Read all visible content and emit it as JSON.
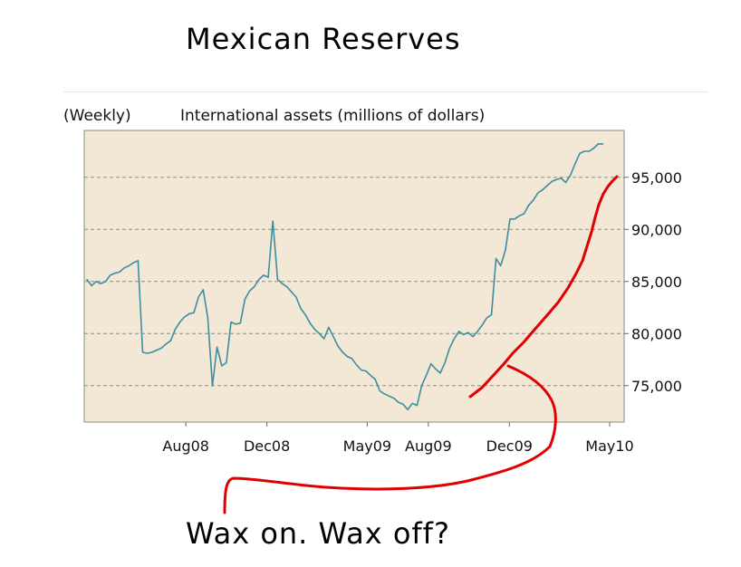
{
  "slide": {
    "title": "Mexican Reserves",
    "caption": "Wax on. Wax off?"
  },
  "chart_data": {
    "type": "line",
    "frequency_label": "(Weekly)",
    "ylabel": "International assets (millions of dollars)",
    "xlabel": "",
    "grid": "horizontal dashed",
    "background": "#f3e7d6",
    "line_color": "#3b8fa0",
    "annotation_color": "#e00000",
    "ylim": [
      71500,
      99500
    ],
    "xlim": [
      "2008-03",
      "2010-05"
    ],
    "y_ticks": [
      "75,000",
      "80,000",
      "85,000",
      "90,000",
      "95,000"
    ],
    "x_ticks": [
      "Aug08",
      "Dec08",
      "May09",
      "Aug09",
      "Dec09",
      "May10"
    ],
    "series": [
      {
        "points": [
          [
            "2008-03-05",
            85200
          ],
          [
            "2008-03-12",
            84600
          ],
          [
            "2008-03-19",
            85000
          ],
          [
            "2008-03-26",
            84800
          ],
          [
            "2008-04-02",
            85000
          ],
          [
            "2008-04-09",
            85600
          ],
          [
            "2008-04-16",
            85800
          ],
          [
            "2008-04-23",
            85900
          ],
          [
            "2008-04-30",
            86300
          ],
          [
            "2008-05-07",
            86500
          ],
          [
            "2008-05-14",
            86800
          ],
          [
            "2008-05-21",
            87000
          ],
          [
            "2008-05-28",
            78200
          ],
          [
            "2008-06-04",
            78100
          ],
          [
            "2008-06-11",
            78200
          ],
          [
            "2008-06-18",
            78400
          ],
          [
            "2008-06-25",
            78600
          ],
          [
            "2008-07-02",
            79000
          ],
          [
            "2008-07-09",
            79300
          ],
          [
            "2008-07-16",
            80400
          ],
          [
            "2008-07-23",
            81100
          ],
          [
            "2008-07-30",
            81600
          ],
          [
            "2008-08-06",
            81900
          ],
          [
            "2008-08-13",
            82000
          ],
          [
            "2008-08-20",
            83500
          ],
          [
            "2008-08-27",
            84200
          ],
          [
            "2008-09-03",
            81500
          ],
          [
            "2008-09-10",
            75000
          ],
          [
            "2008-09-17",
            78700
          ],
          [
            "2008-09-24",
            76900
          ],
          [
            "2008-10-01",
            77200
          ],
          [
            "2008-10-08",
            81100
          ],
          [
            "2008-10-15",
            80900
          ],
          [
            "2008-10-22",
            81000
          ],
          [
            "2008-10-29",
            83300
          ],
          [
            "2008-11-05",
            84100
          ],
          [
            "2008-11-12",
            84500
          ],
          [
            "2008-11-19",
            85200
          ],
          [
            "2008-11-26",
            85600
          ],
          [
            "2008-12-03",
            85400
          ],
          [
            "2008-12-10",
            90800
          ],
          [
            "2008-12-17",
            85200
          ],
          [
            "2008-12-24",
            84800
          ],
          [
            "2008-12-31",
            84500
          ],
          [
            "2009-01-07",
            84000
          ],
          [
            "2009-01-14",
            83500
          ],
          [
            "2009-01-21",
            82400
          ],
          [
            "2009-01-28",
            81800
          ],
          [
            "2009-02-04",
            81000
          ],
          [
            "2009-02-11",
            80400
          ],
          [
            "2009-02-18",
            80000
          ],
          [
            "2009-02-25",
            79500
          ],
          [
            "2009-03-04",
            80600
          ],
          [
            "2009-03-11",
            79700
          ],
          [
            "2009-03-18",
            78800
          ],
          [
            "2009-03-25",
            78200
          ],
          [
            "2009-04-01",
            77800
          ],
          [
            "2009-04-08",
            77600
          ],
          [
            "2009-04-15",
            77000
          ],
          [
            "2009-04-22",
            76500
          ],
          [
            "2009-04-29",
            76400
          ],
          [
            "2009-05-06",
            76000
          ],
          [
            "2009-05-13",
            75600
          ],
          [
            "2009-05-20",
            74500
          ],
          [
            "2009-05-27",
            74200
          ],
          [
            "2009-06-03",
            74000
          ],
          [
            "2009-06-10",
            73800
          ],
          [
            "2009-06-17",
            73400
          ],
          [
            "2009-06-24",
            73200
          ],
          [
            "2009-07-01",
            72700
          ],
          [
            "2009-07-08",
            73300
          ],
          [
            "2009-07-15",
            73100
          ],
          [
            "2009-07-22",
            75000
          ],
          [
            "2009-07-29",
            76000
          ],
          [
            "2009-08-05",
            77100
          ],
          [
            "2009-08-12",
            76600
          ],
          [
            "2009-08-19",
            76200
          ],
          [
            "2009-08-26",
            77200
          ],
          [
            "2009-09-02",
            78600
          ],
          [
            "2009-09-09",
            79500
          ],
          [
            "2009-09-16",
            80200
          ],
          [
            "2009-09-23",
            79900
          ],
          [
            "2009-09-30",
            80100
          ],
          [
            "2009-10-07",
            79700
          ],
          [
            "2009-10-14",
            80200
          ],
          [
            "2009-10-21",
            80800
          ],
          [
            "2009-10-28",
            81500
          ],
          [
            "2009-11-04",
            81800
          ],
          [
            "2009-11-11",
            87200
          ],
          [
            "2009-11-18",
            86500
          ],
          [
            "2009-11-25",
            88000
          ],
          [
            "2009-12-02",
            91000
          ],
          [
            "2009-12-09",
            91000
          ],
          [
            "2009-12-16",
            91300
          ],
          [
            "2009-12-23",
            91500
          ],
          [
            "2009-12-30",
            92300
          ],
          [
            "2010-01-06",
            92800
          ],
          [
            "2010-01-13",
            93500
          ],
          [
            "2010-01-20",
            93800
          ],
          [
            "2010-01-27",
            94200
          ],
          [
            "2010-02-03",
            94600
          ],
          [
            "2010-02-10",
            94800
          ],
          [
            "2010-02-17",
            94900
          ],
          [
            "2010-02-24",
            94500
          ],
          [
            "2010-03-03",
            95200
          ],
          [
            "2010-03-10",
            96300
          ],
          [
            "2010-03-17",
            97300
          ],
          [
            "2010-03-24",
            97500
          ],
          [
            "2010-03-31",
            97500
          ],
          [
            "2010-04-07",
            97800
          ],
          [
            "2010-04-14",
            98200
          ],
          [
            "2010-04-21",
            98200
          ]
        ]
      }
    ]
  }
}
